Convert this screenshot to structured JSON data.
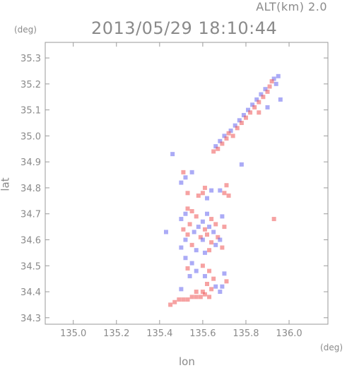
{
  "header": {
    "altitude_label": "ALT(km) 2.0",
    "timestamp": "2013/05/29 18:10:44"
  },
  "chart_data": {
    "type": "scatter",
    "xlabel": "lon",
    "ylabel": "lat",
    "x_unit": "(deg)",
    "y_unit": "(deg)",
    "xlim": [
      134.87,
      136.18
    ],
    "ylim": [
      34.275,
      35.36
    ],
    "x_ticks": [
      "135.0",
      "135.2",
      "135.4",
      "135.6",
      "135.8",
      "136.0"
    ],
    "y_ticks": [
      "34.3",
      "34.4",
      "34.5",
      "34.6",
      "34.7",
      "34.8",
      "34.9",
      "35.0",
      "35.1",
      "35.2",
      "35.3"
    ],
    "grid": false,
    "colors": {
      "positive": "#ee5555",
      "negative": "#6666ee",
      "axis": "#9a9a9a"
    },
    "series": [
      {
        "points": [
          [
            135.95,
            35.23,
            -1
          ],
          [
            135.93,
            35.22,
            -1
          ],
          [
            135.92,
            35.21,
            1
          ],
          [
            135.94,
            35.2,
            -1
          ],
          [
            135.91,
            35.19,
            1
          ],
          [
            135.89,
            35.18,
            -1
          ],
          [
            135.9,
            35.17,
            1
          ],
          [
            135.87,
            35.16,
            -1
          ],
          [
            135.88,
            35.15,
            1
          ],
          [
            135.85,
            35.14,
            -1
          ],
          [
            135.86,
            35.13,
            1
          ],
          [
            135.83,
            35.12,
            -1
          ],
          [
            135.84,
            35.11,
            1
          ],
          [
            135.81,
            35.1,
            -1
          ],
          [
            135.82,
            35.09,
            1
          ],
          [
            135.79,
            35.08,
            -1
          ],
          [
            135.8,
            35.07,
            1
          ],
          [
            135.77,
            35.06,
            -1
          ],
          [
            135.78,
            35.05,
            1
          ],
          [
            135.75,
            35.04,
            -1
          ],
          [
            135.76,
            35.03,
            1
          ],
          [
            135.73,
            35.02,
            -1
          ],
          [
            135.72,
            35.01,
            1
          ],
          [
            135.7,
            35.0,
            -1
          ],
          [
            135.71,
            34.99,
            1
          ],
          [
            135.68,
            34.98,
            -1
          ],
          [
            135.69,
            34.97,
            1
          ],
          [
            135.66,
            34.96,
            -1
          ],
          [
            135.67,
            34.95,
            1
          ],
          [
            135.65,
            34.94,
            1
          ],
          [
            135.96,
            35.14,
            -1
          ],
          [
            135.9,
            35.11,
            -1
          ],
          [
            135.86,
            35.09,
            1
          ],
          [
            135.74,
            35.0,
            1
          ],
          [
            135.51,
            34.86,
            1
          ],
          [
            135.52,
            34.84,
            -1
          ],
          [
            135.5,
            34.82,
            -1
          ],
          [
            135.53,
            34.78,
            1
          ],
          [
            135.61,
            34.8,
            1
          ],
          [
            135.6,
            34.78,
            1
          ],
          [
            135.62,
            34.76,
            -1
          ],
          [
            135.58,
            34.77,
            1
          ],
          [
            135.64,
            34.79,
            -1
          ],
          [
            135.71,
            34.81,
            1
          ],
          [
            135.7,
            34.78,
            1
          ],
          [
            135.72,
            34.77,
            1
          ],
          [
            135.68,
            34.79,
            -1
          ],
          [
            135.78,
            34.89,
            -1
          ],
          [
            135.46,
            34.93,
            -1
          ],
          [
            135.55,
            34.86,
            -1
          ],
          [
            135.53,
            34.72,
            1
          ],
          [
            135.55,
            34.71,
            1
          ],
          [
            135.52,
            34.7,
            -1
          ],
          [
            135.57,
            34.69,
            1
          ],
          [
            135.5,
            34.68,
            -1
          ],
          [
            135.54,
            34.66,
            1
          ],
          [
            135.58,
            34.65,
            -1
          ],
          [
            135.51,
            34.64,
            1
          ],
          [
            135.56,
            34.63,
            -1
          ],
          [
            135.53,
            34.62,
            1
          ],
          [
            135.59,
            34.61,
            1
          ],
          [
            135.52,
            34.6,
            -1
          ],
          [
            135.55,
            34.58,
            1
          ],
          [
            135.5,
            34.57,
            -1
          ],
          [
            135.57,
            34.56,
            -1
          ],
          [
            135.62,
            34.7,
            -1
          ],
          [
            135.64,
            34.68,
            1
          ],
          [
            135.6,
            34.67,
            -1
          ],
          [
            135.66,
            34.66,
            1
          ],
          [
            135.63,
            34.65,
            -1
          ],
          [
            135.61,
            34.64,
            1
          ],
          [
            135.65,
            34.63,
            -1
          ],
          [
            135.62,
            34.62,
            1
          ],
          [
            135.67,
            34.61,
            1
          ],
          [
            135.6,
            34.6,
            -1
          ],
          [
            135.64,
            34.59,
            1
          ],
          [
            135.66,
            34.58,
            -1
          ],
          [
            135.63,
            34.56,
            1
          ],
          [
            135.61,
            34.55,
            -1
          ],
          [
            135.69,
            34.69,
            -1
          ],
          [
            135.7,
            34.65,
            1
          ],
          [
            135.68,
            34.6,
            -1
          ],
          [
            135.69,
            34.57,
            1
          ],
          [
            135.43,
            34.63,
            -1
          ],
          [
            135.93,
            34.68,
            1
          ],
          [
            135.52,
            34.53,
            -1
          ],
          [
            135.55,
            34.51,
            -1
          ],
          [
            135.53,
            34.49,
            1
          ],
          [
            135.57,
            34.48,
            -1
          ],
          [
            135.54,
            34.46,
            -1
          ],
          [
            135.6,
            34.5,
            1
          ],
          [
            135.63,
            34.48,
            1
          ],
          [
            135.61,
            34.46,
            -1
          ],
          [
            135.65,
            34.45,
            1
          ],
          [
            135.62,
            34.43,
            1
          ],
          [
            135.66,
            34.42,
            -1
          ],
          [
            135.64,
            34.41,
            1
          ],
          [
            135.68,
            34.4,
            -1
          ],
          [
            135.6,
            34.4,
            1
          ],
          [
            135.7,
            34.47,
            -1
          ],
          [
            135.71,
            34.44,
            1
          ],
          [
            135.69,
            34.42,
            -1
          ],
          [
            135.5,
            34.41,
            -1
          ],
          [
            135.57,
            34.4,
            1
          ],
          [
            135.49,
            34.37,
            1
          ],
          [
            135.51,
            34.37,
            1
          ],
          [
            135.53,
            34.37,
            1
          ],
          [
            135.55,
            34.38,
            1
          ],
          [
            135.57,
            34.38,
            1
          ],
          [
            135.59,
            34.38,
            1
          ],
          [
            135.61,
            34.39,
            1
          ],
          [
            135.63,
            34.38,
            1
          ],
          [
            135.47,
            34.36,
            1
          ],
          [
            135.45,
            34.35,
            1
          ]
        ]
      }
    ]
  }
}
